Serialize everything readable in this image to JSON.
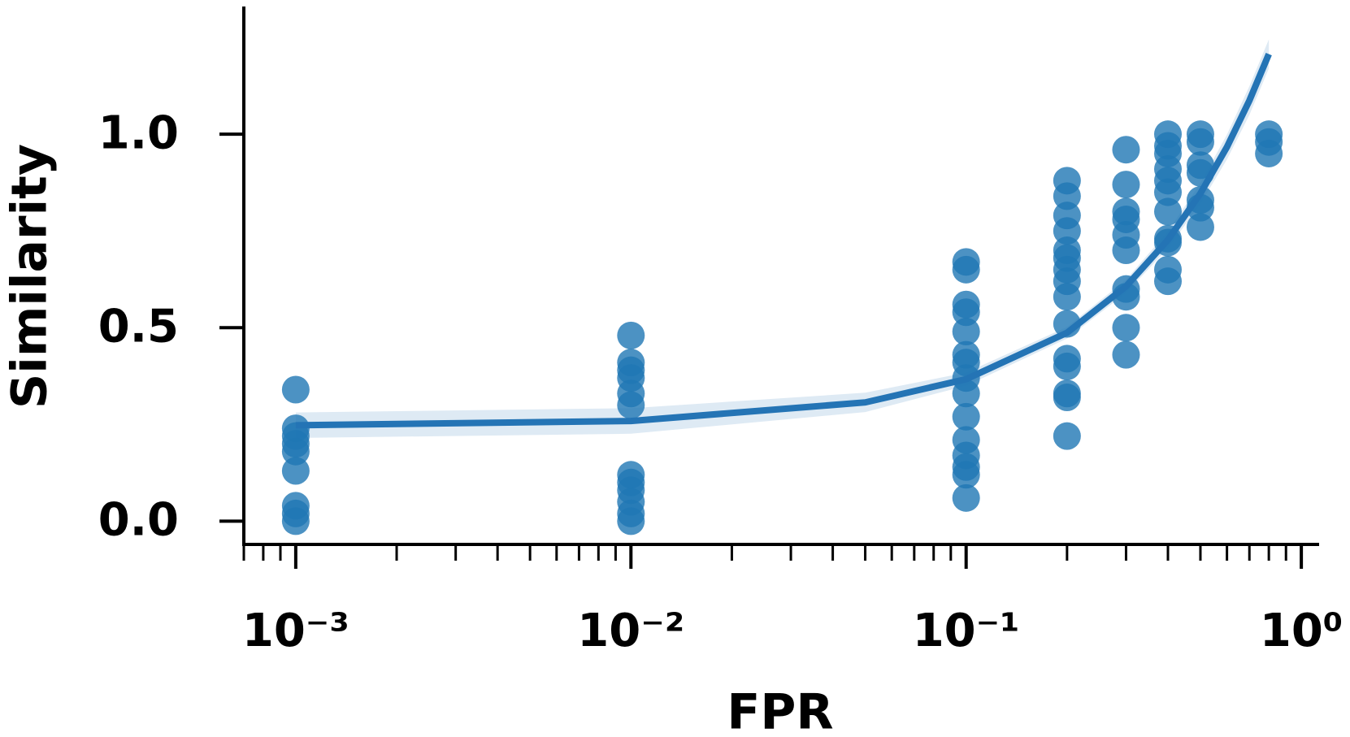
{
  "chart_data": {
    "type": "scatter",
    "x_label": "FPR",
    "y_label": "Similarity",
    "xscale": "log",
    "xlim": [
      0.0007,
      1.13
    ],
    "ylim": [
      -0.06,
      1.33
    ],
    "xticks": [
      {
        "value": 0.001,
        "label": "10⁻³"
      },
      {
        "value": 0.01,
        "label": "10⁻²"
      },
      {
        "value": 0.1,
        "label": "10⁻¹"
      },
      {
        "value": 1,
        "label": "10⁰"
      }
    ],
    "xminorticks": [
      0.0007,
      0.0008,
      0.0009,
      0.002,
      0.003,
      0.004,
      0.005,
      0.006,
      0.007,
      0.008,
      0.009,
      0.02,
      0.03,
      0.04,
      0.05,
      0.06,
      0.07,
      0.08,
      0.09,
      0.2,
      0.3,
      0.4,
      0.5,
      0.6,
      0.7,
      0.8,
      0.9
    ],
    "yticks": [
      {
        "value": 0,
        "label": "0.0"
      },
      {
        "value": 0.5,
        "label": "0.5"
      },
      {
        "value": 1,
        "label": "1.0"
      }
    ],
    "series": [
      {
        "type": "scatter",
        "color": "#1f77b4",
        "x": [
          0.001,
          0.001,
          0.001,
          0.001,
          0.001,
          0.001,
          0.001,
          0.001,
          0.001,
          0.01,
          0.01,
          0.01,
          0.01,
          0.01,
          0.01,
          0.01,
          0.01,
          0.01,
          0.01,
          0.01,
          0.01,
          0.1,
          0.1,
          0.1,
          0.1,
          0.1,
          0.1,
          0.1,
          0.1,
          0.1,
          0.1,
          0.1,
          0.1,
          0.1,
          0.1,
          0.1,
          0.2,
          0.2,
          0.2,
          0.2,
          0.2,
          0.2,
          0.2,
          0.2,
          0.2,
          0.2,
          0.2,
          0.2,
          0.2,
          0.2,
          0.2,
          0.3,
          0.3,
          0.3,
          0.3,
          0.3,
          0.3,
          0.3,
          0.3,
          0.3,
          0.3,
          0.4,
          0.4,
          0.4,
          0.4,
          0.4,
          0.4,
          0.4,
          0.4,
          0.4,
          0.4,
          0.4,
          0.5,
          0.5,
          0.5,
          0.5,
          0.5,
          0.5,
          0.5,
          0.8,
          0.8,
          0.8
        ],
        "values": [
          0.34,
          0.24,
          0.22,
          0.2,
          0.18,
          0.13,
          0.04,
          0.02,
          0.0,
          0.48,
          0.41,
          0.39,
          0.37,
          0.33,
          0.3,
          0.12,
          0.1,
          0.08,
          0.05,
          0.02,
          0.0,
          0.67,
          0.65,
          0.56,
          0.54,
          0.49,
          0.43,
          0.41,
          0.37,
          0.33,
          0.27,
          0.21,
          0.17,
          0.14,
          0.12,
          0.06,
          0.88,
          0.84,
          0.79,
          0.75,
          0.7,
          0.68,
          0.65,
          0.62,
          0.58,
          0.51,
          0.42,
          0.4,
          0.33,
          0.32,
          0.22,
          0.96,
          0.87,
          0.8,
          0.78,
          0.74,
          0.7,
          0.6,
          0.58,
          0.5,
          0.43,
          1.0,
          0.97,
          0.95,
          0.91,
          0.88,
          0.85,
          0.8,
          0.73,
          0.72,
          0.65,
          0.62,
          1.0,
          0.98,
          0.92,
          0.9,
          0.83,
          0.81,
          0.76,
          1.0,
          0.98,
          0.95
        ]
      },
      {
        "type": "line",
        "color": "#2474b5",
        "x": [
          0.001,
          0.01,
          0.05,
          0.1,
          0.2,
          0.3,
          0.4,
          0.5,
          0.6,
          0.7,
          0.8
        ],
        "values": [
          0.248,
          0.259,
          0.307,
          0.367,
          0.487,
          0.607,
          0.727,
          0.847,
          0.967,
          1.087,
          1.207
        ],
        "lower": [
          0.215,
          0.226,
          0.282,
          0.35,
          0.472,
          0.59,
          0.705,
          0.82,
          0.935,
          1.05,
          1.17
        ],
        "upper": [
          0.281,
          0.292,
          0.332,
          0.384,
          0.502,
          0.624,
          0.749,
          0.874,
          0.999,
          1.124,
          1.245
        ]
      }
    ]
  }
}
